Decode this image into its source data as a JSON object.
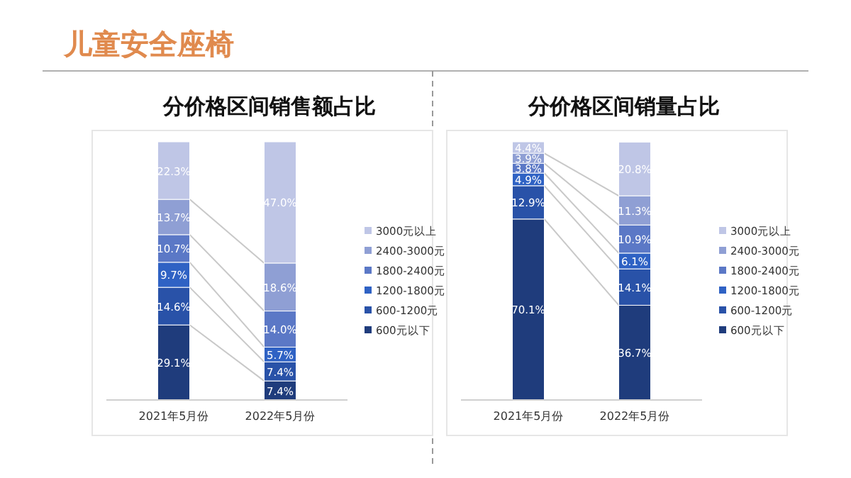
{
  "chart_data": [
    {
      "type": "other",
      "title": "儿童安全座椅"
    },
    {
      "type": "bar",
      "title": "分价格区间销售额占比",
      "stacked": true,
      "legend": "right",
      "categories": [
        "2021年5月份",
        "2022年5月份"
      ],
      "series": [
        {
          "name": "600元以下",
          "color": "#1f3c7c",
          "values": [
            29.1,
            7.4
          ],
          "value_labels": [
            "29.1%",
            "7.4%"
          ]
        },
        {
          "name": "600-1200元",
          "color": "#2952a8",
          "values": [
            14.6,
            7.4
          ],
          "value_labels": [
            "14.6%",
            "7.4%"
          ]
        },
        {
          "name": "1200-1800元",
          "color": "#2f62c4",
          "values": [
            9.7,
            5.7
          ],
          "value_labels": [
            "9.7%",
            "5.7%"
          ]
        },
        {
          "name": "1800-2400元",
          "color": "#5b78c6",
          "values": [
            10.7,
            14.0
          ],
          "value_labels": [
            "10.7%",
            "14.0%"
          ]
        },
        {
          "name": "2400-3000元",
          "color": "#8f9fd4",
          "values": [
            13.7,
            18.6
          ],
          "value_labels": [
            "13.7%",
            "18.6%"
          ]
        },
        {
          "name": "3000元以上",
          "color": "#bfc6e6",
          "values": [
            22.3,
            47.0
          ],
          "value_labels": [
            "22.3%",
            "47.0%"
          ]
        }
      ]
    },
    {
      "type": "bar",
      "title": "分价格区间销量占比",
      "stacked": true,
      "legend": "right",
      "categories": [
        "2021年5月份",
        "2022年5月份"
      ],
      "series": [
        {
          "name": "600元以下",
          "color": "#1f3c7c",
          "values": [
            70.1,
            36.7
          ],
          "value_labels": [
            "70.1%",
            "36.7%"
          ]
        },
        {
          "name": "600-1200元",
          "color": "#2952a8",
          "values": [
            12.9,
            14.1
          ],
          "value_labels": [
            "12.9%",
            "14.1%"
          ]
        },
        {
          "name": "1200-1800元",
          "color": "#2f62c4",
          "values": [
            4.9,
            6.1
          ],
          "value_labels": [
            "4.9%",
            "6.1%"
          ]
        },
        {
          "name": "1800-2400元",
          "color": "#5b78c6",
          "values": [
            3.8,
            10.9
          ],
          "value_labels": [
            "3.8%",
            "10.9%"
          ]
        },
        {
          "name": "2400-3000元",
          "color": "#8f9fd4",
          "values": [
            3.9,
            11.3
          ],
          "value_labels": [
            "3.9%",
            "11.3%"
          ]
        },
        {
          "name": "3000元以上",
          "color": "#bfc6e6",
          "values": [
            4.4,
            20.8
          ],
          "value_labels": [
            "4.4%",
            "20.8%"
          ]
        }
      ]
    }
  ]
}
